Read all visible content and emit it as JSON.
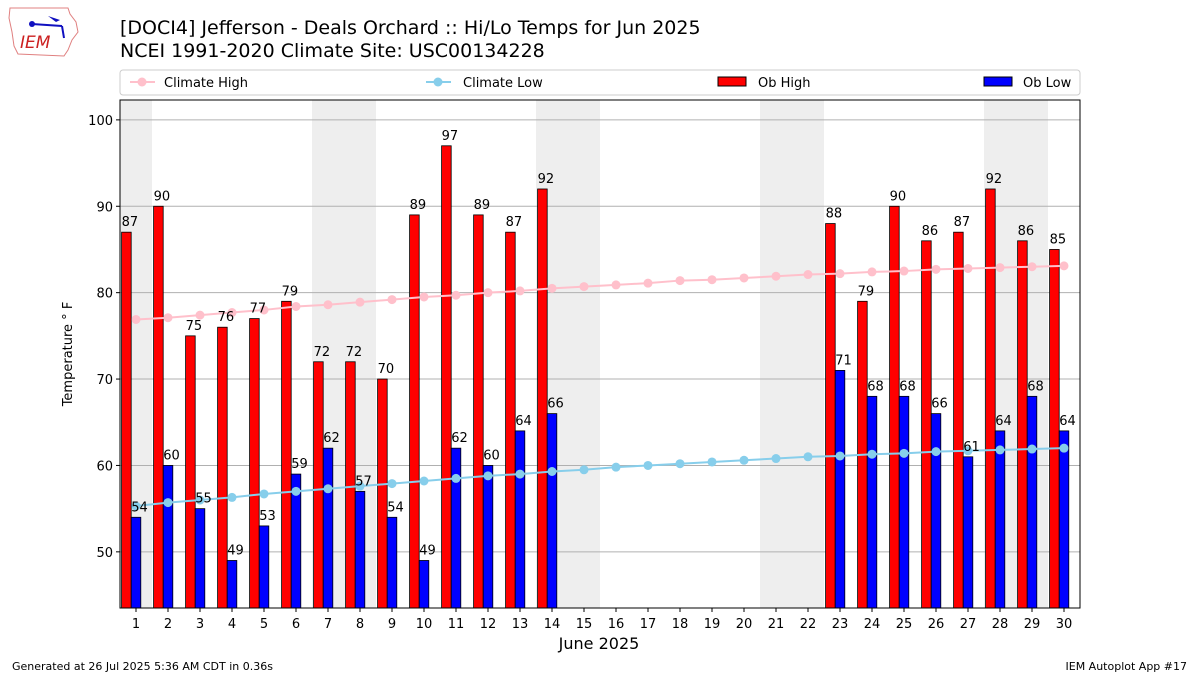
{
  "header": {
    "title_line1": "[DOCI4] Jefferson - Deals Orchard :: Hi/Lo Temps for Jun 2025",
    "title_line2": "NCEI 1991-2020 Climate Site: USC00134228",
    "logo_text": "IEM"
  },
  "footer": {
    "generated": "Generated at 26 Jul 2025 5:36 AM CDT in 0.36s",
    "app": "IEM Autoplot App #17"
  },
  "chart_data": {
    "type": "bar",
    "title": "[DOCI4] Jefferson - Deals Orchard :: Hi/Lo Temps for Jun 2025",
    "xlabel": "June 2025",
    "ylabel": "Temperature ° F",
    "xlim": [
      0.5,
      30.5
    ],
    "ylim": [
      43.5,
      102.3
    ],
    "yticks": [
      50,
      60,
      70,
      80,
      90,
      100
    ],
    "xticks": [
      1,
      2,
      3,
      4,
      5,
      6,
      7,
      8,
      9,
      10,
      11,
      12,
      13,
      14,
      15,
      16,
      17,
      18,
      19,
      20,
      21,
      22,
      23,
      24,
      25,
      26,
      27,
      28,
      29,
      30
    ],
    "grid": "horizontal",
    "legend_position": "top",
    "weekend_shaded_days": [
      1,
      7,
      8,
      14,
      15,
      21,
      22,
      28,
      29
    ],
    "legend": [
      "Climate High",
      "Climate Low",
      "Ob High",
      "Ob Low"
    ],
    "colors": {
      "climate_high": "#FFC0CB",
      "climate_low": "#87CEEB",
      "ob_high": "#FF0000",
      "ob_low": "#0000FF",
      "weekend": "#EEEEEE"
    },
    "ob_days": [
      1,
      2,
      3,
      4,
      5,
      6,
      7,
      8,
      9,
      10,
      11,
      12,
      13,
      14,
      23,
      24,
      25,
      26,
      27,
      28,
      29,
      30
    ],
    "ob_high": [
      87,
      90,
      75,
      76,
      77,
      79,
      72,
      72,
      70,
      89,
      97,
      89,
      87,
      92,
      88,
      79,
      90,
      86,
      87,
      92,
      86,
      85
    ],
    "ob_low": [
      54,
      60,
      55,
      49,
      53,
      59,
      62,
      57,
      54,
      49,
      62,
      60,
      64,
      66,
      71,
      68,
      68,
      66,
      61,
      64,
      68,
      64
    ],
    "climate_high": [
      76.9,
      77.1,
      77.4,
      77.7,
      78.0,
      78.4,
      78.6,
      78.9,
      79.2,
      79.5,
      79.7,
      80.0,
      80.2,
      80.5,
      80.7,
      80.9,
      81.1,
      81.4,
      81.5,
      81.7,
      81.9,
      82.1,
      82.2,
      82.4,
      82.5,
      82.7,
      82.8,
      82.9,
      83.0,
      83.1
    ],
    "climate_low": [
      55.3,
      55.7,
      56.0,
      56.3,
      56.7,
      57.0,
      57.3,
      57.6,
      57.9,
      58.2,
      58.5,
      58.8,
      59.0,
      59.3,
      59.5,
      59.8,
      60.0,
      60.2,
      60.4,
      60.6,
      60.8,
      61.0,
      61.1,
      61.3,
      61.4,
      61.6,
      61.7,
      61.8,
      61.9,
      62.0
    ]
  }
}
